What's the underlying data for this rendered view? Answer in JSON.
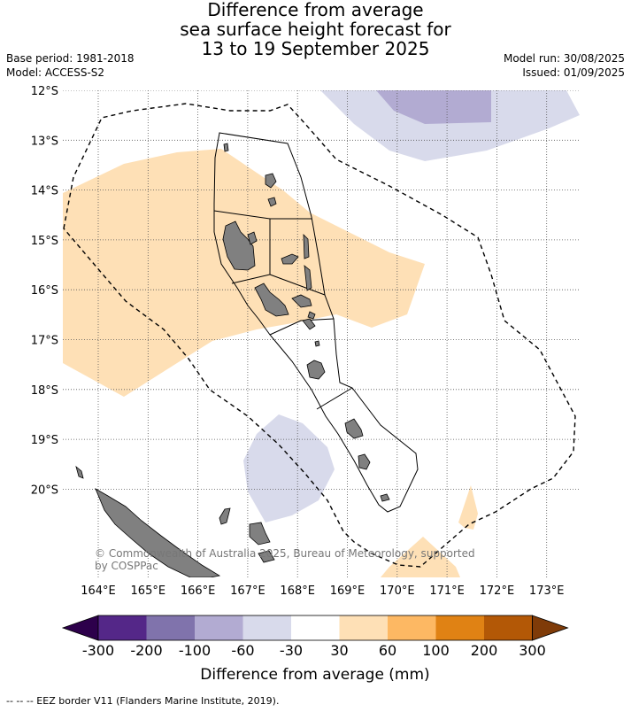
{
  "title": {
    "line1": "Difference from average",
    "line2": "sea surface height forecast for",
    "line3": "13 to 19 September 2025"
  },
  "meta_left": {
    "line1": "Base period: 1981-2018",
    "line2": "Model: ACCESS-S2"
  },
  "meta_right": {
    "line1": "Model run: 30/08/2025",
    "line2": "Issued: 01/09/2025"
  },
  "map": {
    "lat_labels": [
      "12°S",
      "13°S",
      "14°S",
      "15°S",
      "16°S",
      "17°S",
      "18°S",
      "19°S",
      "20°S"
    ],
    "lon_labels": [
      "164°E",
      "165°E",
      "166°E",
      "167°E",
      "168°E",
      "169°E",
      "170°E",
      "171°E",
      "172°E",
      "173°E"
    ],
    "copyright_line1": "© Commonwealth of Australia 2025, Bureau of Meteorology, supported",
    "copyright_line2": "by COSPPac",
    "land_color": "#808080",
    "positive_color": "#fee0b6",
    "negative_color": "#d8daeb",
    "negative_dark_color": "#b2abd2"
  },
  "colorbar": {
    "title": "Difference from average (mm)",
    "ticks": [
      "-300",
      "-200",
      "-100",
      "-60",
      "-30",
      "30",
      "60",
      "100",
      "200",
      "300"
    ],
    "colors": [
      "#2d004b",
      "#542788",
      "#8073ac",
      "#b2abd2",
      "#d8daeb",
      "#ffffff",
      "#fee0b6",
      "#fdb863",
      "#e08214",
      "#b35806",
      "#7f3b08"
    ]
  },
  "footer": "-- -- -- EEZ border V11 (Flanders Marine Institute, 2019)."
}
